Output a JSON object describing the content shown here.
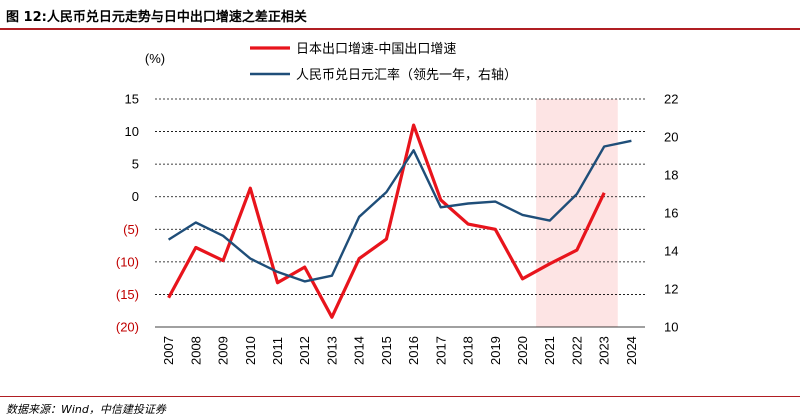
{
  "header": {
    "title": "图 12:人民币兑日元走势与日中出口增速之差正相关"
  },
  "footer": {
    "source": "数据来源：Wind，中信建投证券"
  },
  "chart_data": {
    "type": "line",
    "categories": [
      "2007",
      "2008",
      "2009",
      "2010",
      "2011",
      "2012",
      "2013",
      "2014",
      "2015",
      "2016",
      "2017",
      "2018",
      "2019",
      "2020",
      "2021",
      "2022",
      "2023",
      "2024"
    ],
    "y_left": {
      "unit_label": "(%)",
      "range": [
        -20,
        15
      ],
      "ticks": [
        15,
        10,
        5,
        0,
        -5,
        -10,
        -15,
        -20
      ],
      "tick_labels": [
        "15",
        "10",
        "5",
        "0",
        "(5)",
        "(10)",
        "(15)",
        "(20)"
      ],
      "negative_label_color": "#c00000"
    },
    "y_right": {
      "range": [
        10,
        22
      ],
      "ticks": [
        22,
        20,
        18,
        16,
        14,
        12,
        10
      ],
      "tick_labels": [
        "22",
        "20",
        "18",
        "16",
        "14",
        "12",
        "10"
      ]
    },
    "grid": "horizontal-dashed",
    "legend_position": "top",
    "shaded_region": {
      "from": "2021",
      "to": "2023",
      "color": "#fde4e4"
    },
    "series": [
      {
        "name": "日本出口增速-中国出口增速",
        "axis": "left",
        "color": "#e8141c",
        "values": [
          -15.5,
          -7.8,
          -9.8,
          1.3,
          -13.2,
          -10.8,
          -18.5,
          -9.5,
          -6.5,
          11.0,
          -0.5,
          -4.2,
          -5.0,
          -12.6,
          -10.3,
          -8.2,
          0.6,
          null
        ]
      },
      {
        "name": "人民币兑日元汇率（领先一年，右轴）",
        "axis": "right",
        "color": "#1f4e79",
        "values": [
          14.6,
          15.5,
          14.8,
          13.6,
          12.9,
          12.4,
          12.7,
          15.8,
          17.1,
          19.3,
          16.3,
          16.5,
          16.6,
          15.9,
          15.6,
          17.0,
          19.5,
          19.8
        ]
      }
    ]
  }
}
